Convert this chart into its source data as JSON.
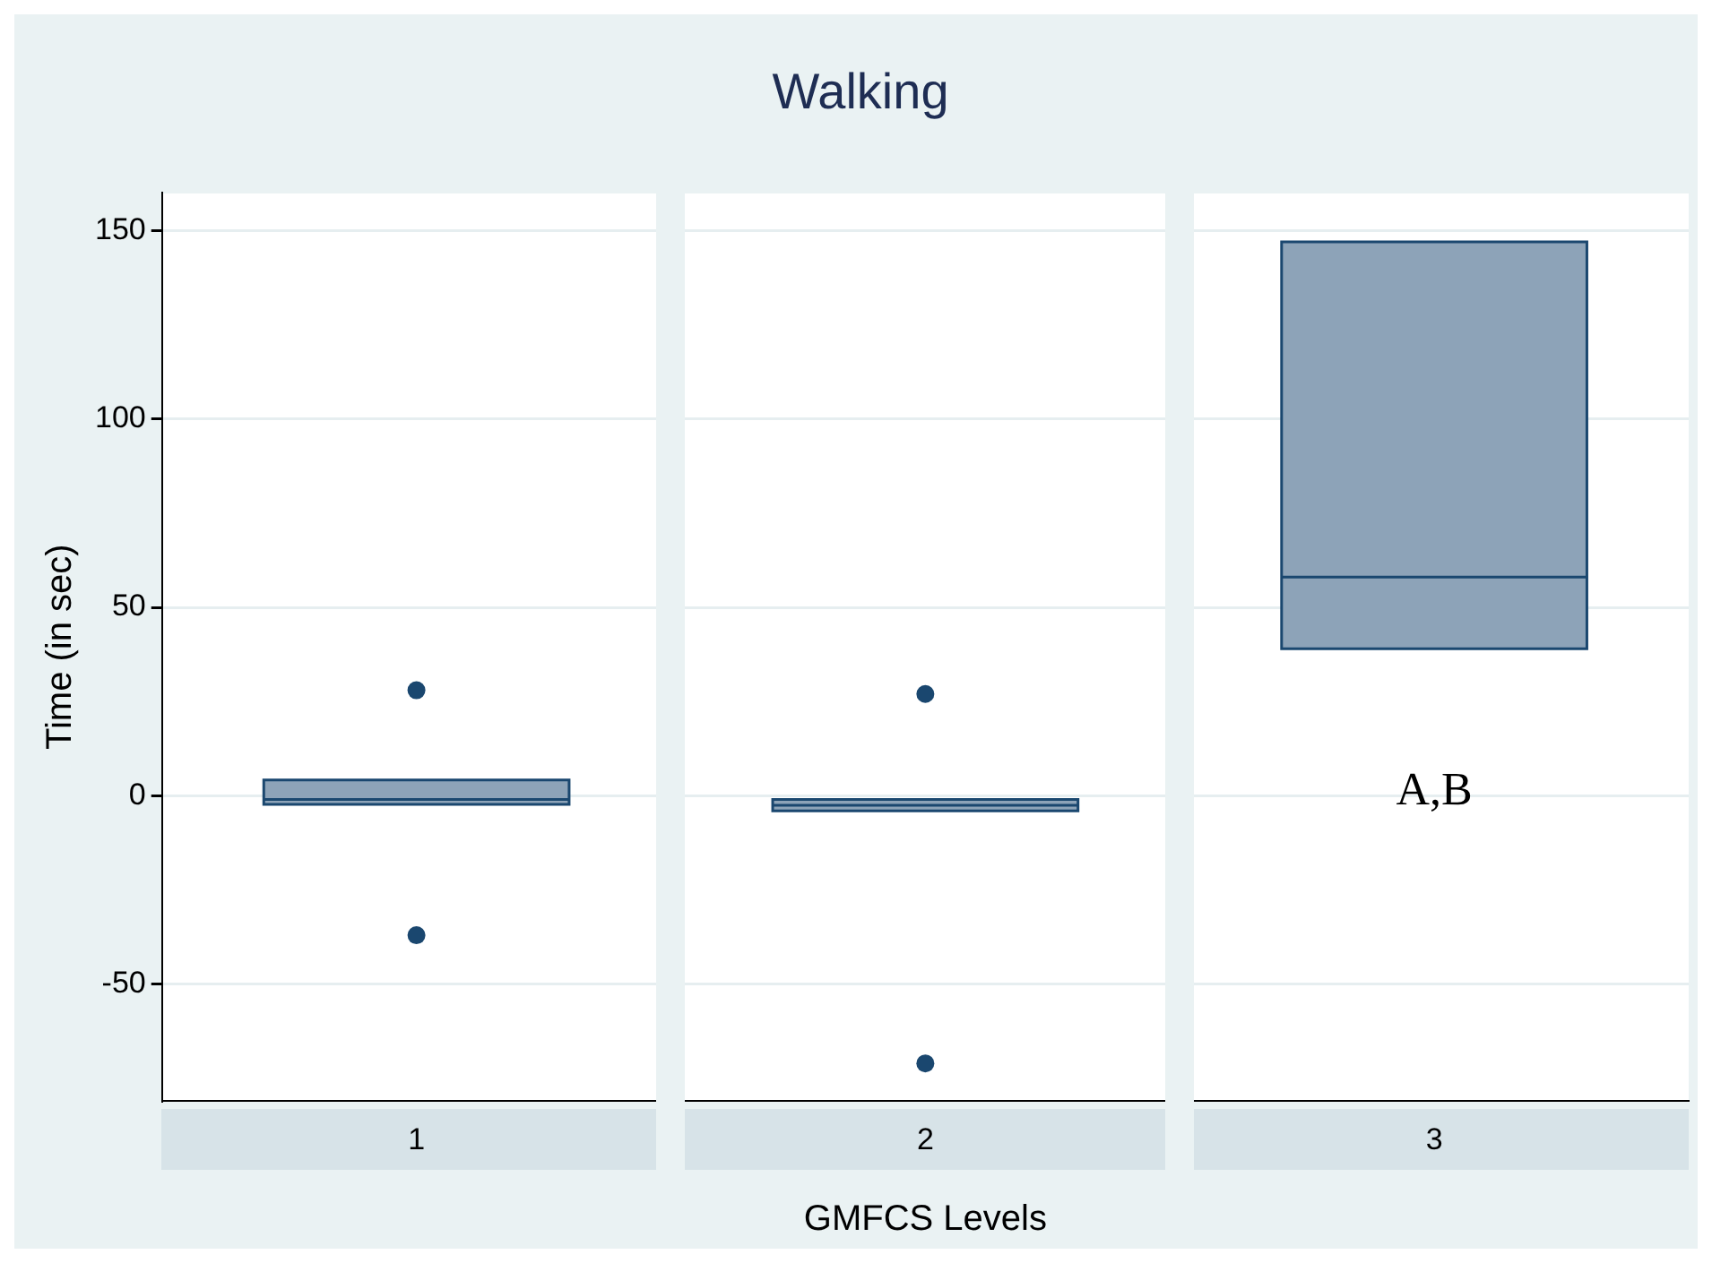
{
  "chart_data": {
    "type": "box",
    "title": "Walking",
    "xlabel": "GMFCS Levels",
    "ylabel": "Time (in sec)",
    "categories": [
      "1",
      "2",
      "3"
    ],
    "boxes": [
      {
        "low": -2.3,
        "q1": -2.3,
        "median": -1,
        "q3": 4.2,
        "high": 4.2,
        "outliers": [
          28,
          -37
        ]
      },
      {
        "low": -4,
        "q1": -4,
        "median": -2.5,
        "q3": -1,
        "high": -1,
        "outliers": [
          27,
          -71
        ]
      },
      {
        "low": 39,
        "q1": 39,
        "median": 58,
        "q3": 147,
        "high": 147
      }
    ],
    "color": "#8da3b8",
    "ylim": [
      -81,
      160
    ],
    "yticks": [
      -50,
      0,
      50,
      100,
      150
    ],
    "grid": "y",
    "legend": false,
    "annotations": [
      "A,B"
    ]
  }
}
